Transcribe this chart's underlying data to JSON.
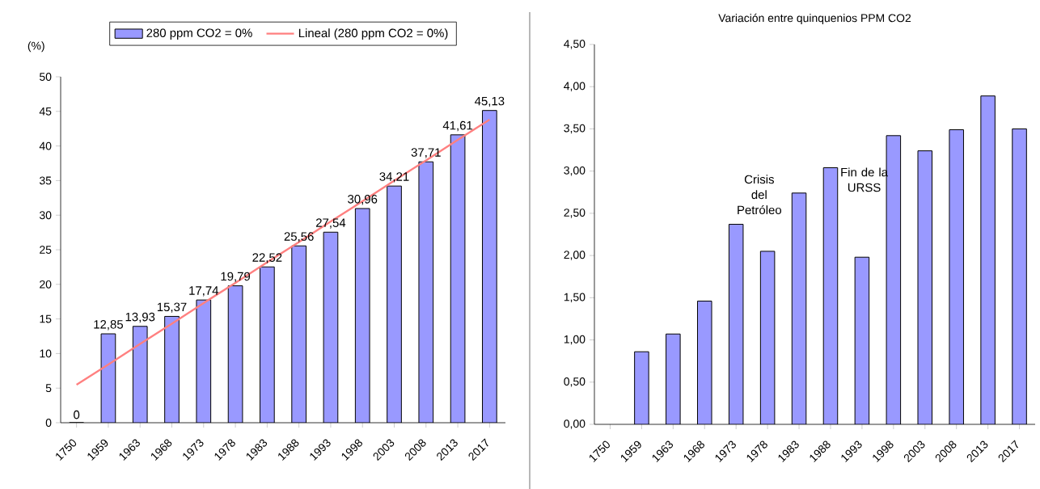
{
  "chart_data": [
    {
      "type": "bar",
      "ylabel": "(%)",
      "legend": "top",
      "grid": false,
      "categories": [
        "1750",
        "1959",
        "1963",
        "1968",
        "1973",
        "1978",
        "1983",
        "1988",
        "1993",
        "1998",
        "2003",
        "2008",
        "2013",
        "2017"
      ],
      "ylim": [
        0,
        50
      ],
      "yticks": [
        0,
        5,
        10,
        15,
        20,
        25,
        30,
        35,
        40,
        45,
        50
      ],
      "series": [
        {
          "name": "280 ppm CO2 = 0%",
          "color": "#9999ff",
          "values": [
            0,
            12.85,
            13.93,
            15.37,
            17.74,
            19.79,
            22.52,
            25.56,
            27.54,
            30.96,
            34.21,
            37.71,
            41.61,
            45.13
          ],
          "value_labels": [
            "0",
            "12,85",
            "13,93",
            "15,37",
            "17,74",
            "19,79",
            "22,52",
            "25,56",
            "27,54",
            "30,96",
            "34,21",
            "37,71",
            "41,61",
            "45,13"
          ]
        },
        {
          "type": "line",
          "name": "Lineal (280 ppm CO2 = 0%)",
          "color": "#ff8080",
          "values": [
            5.5,
            8.4,
            11.4,
            14.3,
            17.3,
            20.2,
            23.2,
            26.1,
            29.1,
            32.0,
            35.0,
            37.9,
            40.9,
            43.8
          ]
        }
      ]
    },
    {
      "type": "bar",
      "title": "Variación entre quinquenios PPM  CO2",
      "grid": false,
      "legend": false,
      "categories": [
        "1750",
        "1959",
        "1963",
        "1968",
        "1973",
        "1978",
        "1983",
        "1988",
        "1993",
        "1998",
        "2003",
        "2008",
        "2013",
        "2017"
      ],
      "ylim": [
        0,
        4.5
      ],
      "yticks": [
        {
          "value": 0,
          "label": "0,00"
        },
        {
          "value": 0.5,
          "label": "0,50"
        },
        {
          "value": 1,
          "label": "1,00"
        },
        {
          "value": 1.5,
          "label": "1,50"
        },
        {
          "value": 2,
          "label": "2,00"
        },
        {
          "value": 2.5,
          "label": "2,50"
        },
        {
          "value": 3,
          "label": "3,00"
        },
        {
          "value": 3.5,
          "label": "3,50"
        },
        {
          "value": 4,
          "label": "4,00"
        },
        {
          "value": 4.5,
          "label": "4,50"
        }
      ],
      "series": [
        {
          "color": "#9999ff",
          "values": [
            null,
            0.86,
            1.07,
            1.46,
            2.37,
            2.05,
            2.74,
            3.04,
            1.98,
            3.42,
            3.24,
            3.49,
            3.89,
            3.5
          ]
        }
      ],
      "annotations": [
        "Crisis del Petróleo",
        "Fin de la URSS"
      ]
    }
  ]
}
